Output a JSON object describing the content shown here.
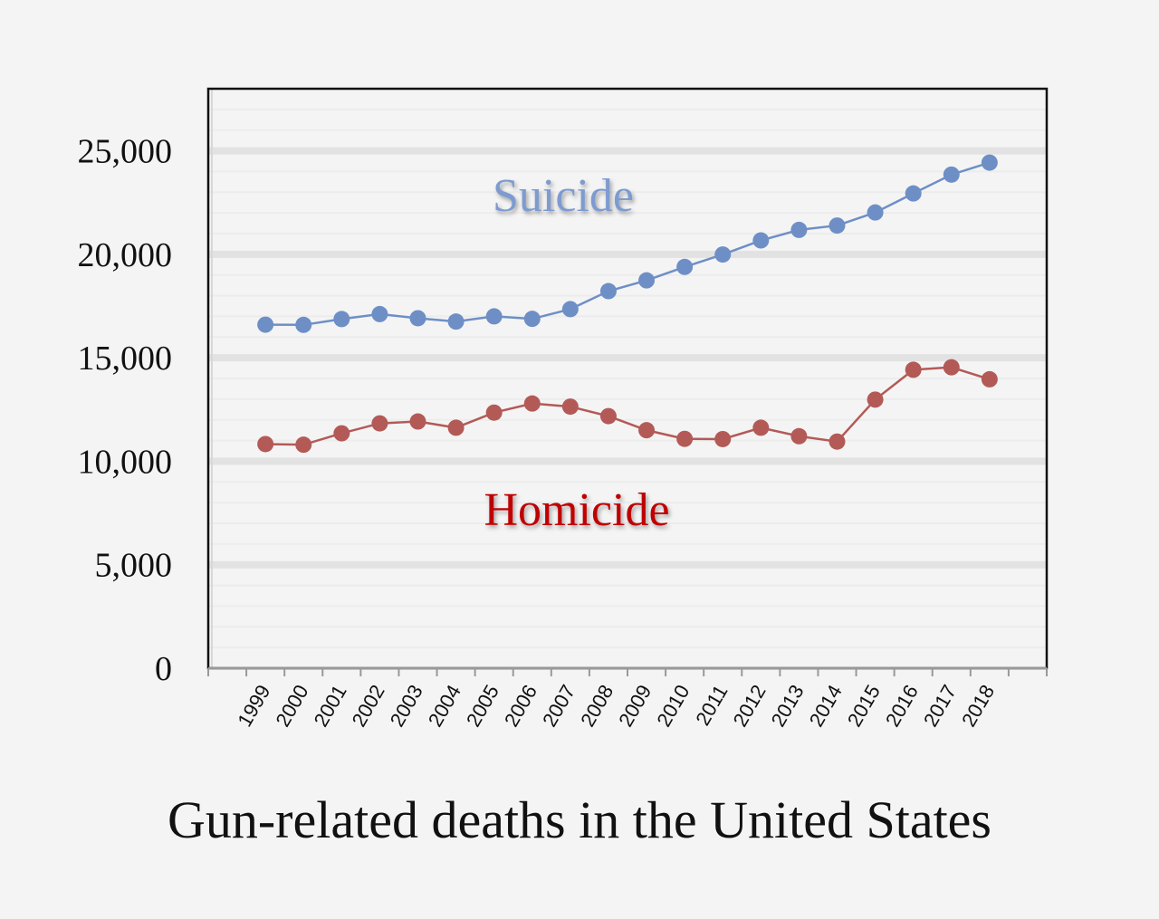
{
  "chart_data": {
    "type": "line",
    "title": "Gun-related deaths in the United States",
    "xlabel": "",
    "ylabel": "",
    "categories": [
      "1999",
      "2000",
      "2001",
      "2002",
      "2003",
      "2004",
      "2005",
      "2006",
      "2007",
      "2008",
      "2009",
      "2010",
      "2011",
      "2012",
      "2013",
      "2014",
      "2015",
      "2016",
      "2017",
      "2018"
    ],
    "ylim": [
      0,
      28000
    ],
    "yticks": [
      "0",
      "5,000",
      "10,000",
      "15,000",
      "20,000",
      "25,000"
    ],
    "ytick_values": [
      0,
      5000,
      10000,
      15000,
      20000,
      25000
    ],
    "series": [
      {
        "name": "Suicide",
        "color": "#6e8fc6",
        "label_color": "#7e9bd0",
        "values": [
          16600,
          16590,
          16870,
          17110,
          16910,
          16750,
          17000,
          16880,
          17350,
          18220,
          18740,
          19390,
          19990,
          20670,
          21180,
          21390,
          22020,
          22940,
          23850,
          24430
        ]
      },
      {
        "name": "Homicide",
        "color": "#b35a57",
        "label_color": "#c00000",
        "values": [
          10830,
          10800,
          11350,
          11830,
          11920,
          11620,
          12350,
          12790,
          12640,
          12180,
          11500,
          11080,
          11070,
          11620,
          11210,
          10950,
          12980,
          14420,
          14540,
          13960
        ]
      }
    ]
  }
}
